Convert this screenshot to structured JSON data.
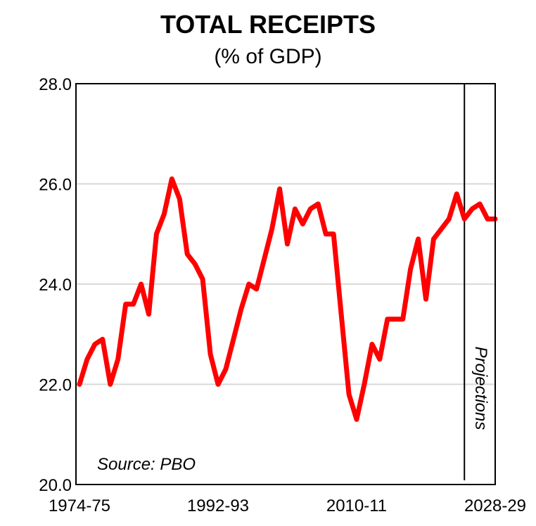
{
  "chart_data": {
    "type": "line",
    "title": "TOTAL RECEIPTS",
    "subtitle": "(% of GDP)",
    "xlabel": "",
    "ylabel": "",
    "ylim": [
      20.0,
      28.0
    ],
    "yticks": [
      "20.0",
      "22.0",
      "24.0",
      "26.0",
      "28.0"
    ],
    "xtick_labels": [
      "1974-75",
      "1992-93",
      "2010-11",
      "2028-29"
    ],
    "grid": "horizontal",
    "line_color": "#ff0000",
    "source_note": "Source: PBO",
    "projection_label": "Projections",
    "projection_start": "2024-25",
    "x": [
      "1974-75",
      "1975-76",
      "1976-77",
      "1977-78",
      "1978-79",
      "1979-80",
      "1980-81",
      "1981-82",
      "1982-83",
      "1983-84",
      "1984-85",
      "1985-86",
      "1986-87",
      "1987-88",
      "1988-89",
      "1989-90",
      "1990-91",
      "1991-92",
      "1992-93",
      "1993-94",
      "1994-95",
      "1995-96",
      "1996-97",
      "1997-98",
      "1998-99",
      "1999-00",
      "2000-01",
      "2001-02",
      "2002-03",
      "2003-04",
      "2004-05",
      "2005-06",
      "2006-07",
      "2007-08",
      "2008-09",
      "2009-10",
      "2010-11",
      "2011-12",
      "2012-13",
      "2013-14",
      "2014-15",
      "2015-16",
      "2016-17",
      "2017-18",
      "2018-19",
      "2019-20",
      "2020-21",
      "2021-22",
      "2022-23",
      "2023-24",
      "2024-25",
      "2025-26",
      "2026-27",
      "2027-28",
      "2028-29"
    ],
    "series": [
      {
        "values": [
          22.0,
          22.5,
          22.8,
          22.9,
          22.0,
          22.5,
          23.6,
          23.6,
          24.0,
          23.4,
          25.0,
          25.4,
          26.1,
          25.7,
          24.6,
          24.4,
          24.1,
          22.6,
          22.0,
          22.3,
          22.9,
          23.5,
          24.0,
          23.9,
          24.5,
          25.1,
          25.9,
          24.8,
          25.5,
          25.2,
          25.5,
          25.6,
          25.0,
          25.0,
          23.4,
          21.8,
          21.3,
          22.0,
          22.8,
          22.5,
          23.3,
          23.3,
          23.3,
          24.3,
          24.9,
          23.7,
          24.9,
          25.1,
          25.3,
          25.8,
          25.3,
          25.5,
          25.6,
          25.3,
          25.3
        ]
      }
    ]
  }
}
